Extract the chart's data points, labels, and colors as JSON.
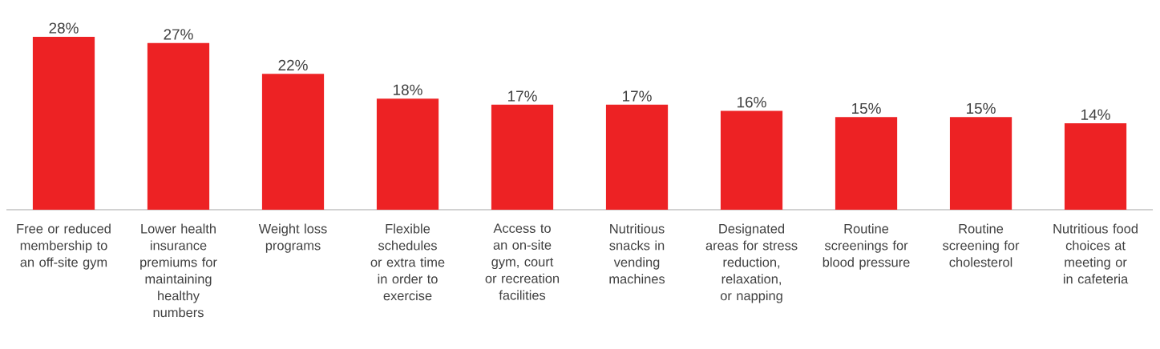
{
  "chart_data": {
    "type": "bar",
    "categories": [
      "Free or reduced membership to an off-site gym",
      "Lower health insurance premiums for maintaining healthy numbers",
      "Weight loss programs",
      "Flexible schedules or extra time in order to exercise",
      "Access to an on-site gym, court or recreation facilities",
      "Nutritious snacks in vending machines",
      "Designated areas for stress reduction, relaxation, or napping",
      "Routine screenings for blood pressure",
      "Routine screening for cholesterol",
      "Nutritious food choices at meeting or in cafeteria"
    ],
    "values": [
      28,
      27,
      22,
      18,
      17,
      17,
      16,
      15,
      15,
      14
    ],
    "value_labels": [
      "28%",
      "27%",
      "22%",
      "18%",
      "17%",
      "17%",
      "16%",
      "15%",
      "15%",
      "14%"
    ],
    "color": "#ed2224"
  }
}
